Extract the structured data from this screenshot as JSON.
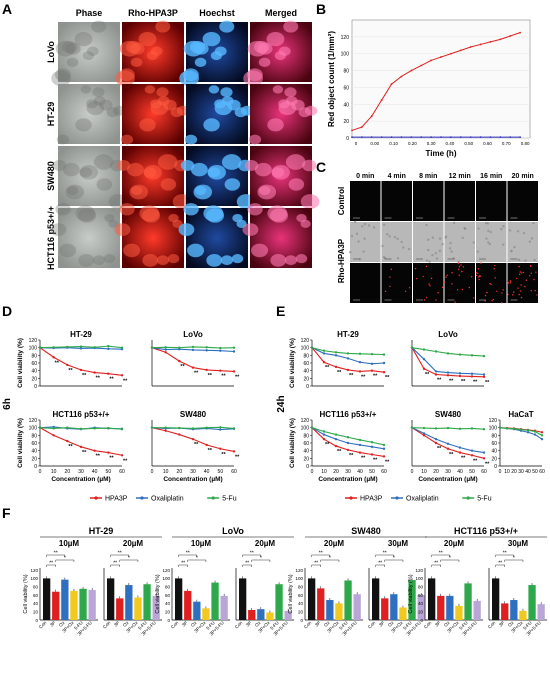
{
  "panelA": {
    "label": "A",
    "columns": [
      "Phase",
      "Rho-HPA3P",
      "Hoechst",
      "Merged"
    ],
    "rows": [
      "LoVo",
      "HT-29",
      "SW480",
      "HCT116 p53+/+"
    ],
    "colors": {
      "phase": "#9aa09c",
      "rho": "#c81010",
      "hoechst": "#1a6fd0",
      "merged": "#b02050"
    }
  },
  "panelB": {
    "label": "B",
    "ylabel": "Red object count (1/mm²)",
    "xlabel": "Time (h)",
    "yticks": [
      "0",
      "20",
      "40",
      "60",
      "80",
      "100",
      "120"
    ],
    "xticks": [
      "0",
      "0.00",
      "0.10",
      "0.20",
      "0.30",
      "0.40",
      "0.50",
      "0.60",
      "0.70",
      "0.80"
    ]
  },
  "panelC": {
    "label": "C",
    "timepoints": [
      "0 min",
      "4 min",
      "8 min",
      "12 min",
      "16 min",
      "20 min"
    ],
    "rows": [
      "Control",
      "Rho-HPA3P"
    ]
  },
  "panelD": {
    "label": "D",
    "side_label": "6h",
    "ylabel": "Cell viability (%)",
    "xlabel": "Concentration (µM)",
    "subplots": [
      "HT-29",
      "LoVo",
      "HCT116 p53+/+",
      "SW480"
    ],
    "annotation": "**"
  },
  "panelE": {
    "label": "E",
    "side_label": "24h",
    "ylabel": "Cell viability (%)",
    "xlabel": "Concentration (µM)",
    "subplots": [
      "HT-29",
      "LoVo",
      "HCT116 p53+/+",
      "SW480",
      "HaCaT"
    ],
    "annotation": "**"
  },
  "legend": {
    "items": [
      {
        "name": "HPA3P",
        "color": "#e02020"
      },
      {
        "name": "Oxaliplatin",
        "color": "#2f6fc0"
      },
      {
        "name": "5-Fu",
        "color": "#2ea84a"
      }
    ]
  },
  "panelF": {
    "label": "F",
    "ylabel": "Cell viability (%)",
    "groups": [
      {
        "title": "HT-29",
        "concs": [
          "10µM",
          "20µM"
        ]
      },
      {
        "title": "LoVo",
        "concs": [
          "10µM",
          "20µM"
        ]
      },
      {
        "title": "SW480",
        "concs": [
          "20µM",
          "30µM"
        ]
      },
      {
        "title": "HCT116 p53+/+",
        "concs": [
          "20µM",
          "30µM"
        ]
      }
    ],
    "bar_categories": [
      "Con",
      "3P",
      "Ox",
      "3P+Ox",
      "5-FU",
      "3P+5-FU"
    ],
    "bar_colors": [
      "#111111",
      "#e02020",
      "#2f6fc0",
      "#f2c91e",
      "#2ea84a",
      "#b9a6d6"
    ],
    "annotations": [
      "*",
      "**"
    ]
  },
  "chart_data": [
    {
      "type": "line",
      "id": "B",
      "xlabel": "Time (h)",
      "ylabel": "Red object count (1/mm²)",
      "ylim": [
        0,
        140
      ],
      "x": [
        0,
        0.05,
        0.1,
        0.15,
        0.2,
        0.25,
        0.3,
        0.35,
        0.4,
        0.45,
        0.5,
        0.55,
        0.6,
        0.65,
        0.7,
        0.75,
        0.8,
        0.85
      ],
      "series": [
        {
          "color": "#e02020",
          "values": [
            9,
            13,
            26,
            45,
            64,
            73,
            80,
            86,
            92,
            96,
            100,
            104,
            108,
            111,
            114,
            117,
            121,
            125
          ]
        },
        {
          "color": "#3030c0",
          "values": [
            1,
            1,
            1,
            1,
            1,
            1,
            1,
            1,
            1,
            1,
            1,
            1,
            1,
            1,
            1,
            1,
            1,
            1
          ]
        }
      ]
    },
    {
      "type": "line",
      "id": "D",
      "x": [
        0,
        10,
        20,
        30,
        40,
        50,
        60
      ],
      "ylim": [
        0,
        100
      ],
      "subplots": [
        {
          "title": "HT-29",
          "series": [
            {
              "name": "HPA3P",
              "values": [
                100,
                75,
                55,
                42,
                35,
                32,
                28
              ]
            },
            {
              "name": "Oxaliplatin",
              "values": [
                100,
                99,
                100,
                98,
                99,
                97,
                96
              ]
            },
            {
              "name": "5-Fu",
              "values": [
                100,
                101,
                102,
                103,
                101,
                104,
                100
              ]
            }
          ]
        },
        {
          "title": "LoVo",
          "series": [
            {
              "name": "HPA3P",
              "values": [
                100,
                88,
                65,
                48,
                42,
                40,
                38
              ]
            },
            {
              "name": "Oxaliplatin",
              "values": [
                100,
                95,
                96,
                94,
                93,
                92,
                90
              ]
            },
            {
              "name": "5-Fu",
              "values": [
                100,
                101,
                100,
                102,
                101,
                99,
                100
              ]
            }
          ]
        },
        {
          "title": "HCT116 p53+/+",
          "series": [
            {
              "name": "HPA3P",
              "values": [
                100,
                80,
                65,
                50,
                40,
                35,
                28
              ]
            },
            {
              "name": "Oxaliplatin",
              "values": [
                100,
                102,
                98,
                96,
                100,
                98,
                97
              ]
            },
            {
              "name": "5-Fu",
              "values": [
                100,
                98,
                100,
                97,
                98,
                99,
                96
              ]
            }
          ]
        },
        {
          "title": "SW480",
          "series": [
            {
              "name": "HPA3P",
              "values": [
                100,
                92,
                82,
                70,
                55,
                45,
                38
              ]
            },
            {
              "name": "Oxaliplatin",
              "values": [
                100,
                98,
                99,
                96,
                98,
                95,
                97
              ]
            },
            {
              "name": "5-Fu",
              "values": [
                100,
                100,
                99,
                98,
                100,
                101,
                98
              ]
            }
          ]
        }
      ]
    },
    {
      "type": "line",
      "id": "E",
      "x": [
        0,
        10,
        20,
        30,
        40,
        50,
        60
      ],
      "ylim": [
        0,
        100
      ],
      "subplots": [
        {
          "title": "HT-29",
          "series": [
            {
              "name": "HPA3P",
              "values": [
                100,
                62,
                50,
                42,
                38,
                40,
                36
              ]
            },
            {
              "name": "Oxaliplatin",
              "values": [
                100,
                85,
                80,
                72,
                62,
                58,
                60
              ]
            },
            {
              "name": "5-Fu",
              "values": [
                100,
                92,
                88,
                85,
                84,
                83,
                82
              ]
            }
          ]
        },
        {
          "title": "LoVo",
          "series": [
            {
              "name": "HPA3P",
              "values": [
                100,
                45,
                30,
                28,
                26,
                25,
                24
              ]
            },
            {
              "name": "Oxaliplatin",
              "values": [
                100,
                70,
                38,
                35,
                33,
                32,
                30
              ]
            },
            {
              "name": "5-Fu",
              "values": [
                100,
                95,
                90,
                85,
                82,
                80,
                78
              ]
            }
          ]
        },
        {
          "title": "HCT116 p53+/+",
          "series": [
            {
              "name": "HPA3P",
              "values": [
                100,
                70,
                52,
                42,
                35,
                30,
                25
              ]
            },
            {
              "name": "Oxaliplatin",
              "values": [
                100,
                82,
                70,
                60,
                55,
                50,
                45
              ]
            },
            {
              "name": "5-Fu",
              "values": [
                100,
                90,
                82,
                75,
                68,
                62,
                55
              ]
            }
          ]
        },
        {
          "title": "SW480",
          "series": [
            {
              "name": "HPA3P",
              "values": [
                100,
                80,
                60,
                45,
                35,
                28,
                20
              ]
            },
            {
              "name": "Oxaliplatin",
              "values": [
                100,
                85,
                70,
                58,
                48,
                40,
                35
              ]
            },
            {
              "name": "5-Fu",
              "values": [
                100,
                99,
                98,
                99,
                97,
                98,
                96
              ]
            }
          ]
        },
        {
          "title": "HaCaT",
          "series": [
            {
              "name": "HPA3P",
              "values": [
                100,
                99,
                98,
                96,
                94,
                92,
                88
              ]
            },
            {
              "name": "Oxaliplatin",
              "values": [
                100,
                98,
                96,
                92,
                88,
                82,
                70
              ]
            },
            {
              "name": "5-Fu",
              "values": [
                100,
                98,
                97,
                95,
                93,
                90,
                80
              ]
            }
          ]
        }
      ]
    },
    {
      "type": "bar",
      "id": "F",
      "ylim": [
        0,
        125
      ],
      "categories": [
        "Con",
        "3P",
        "Ox",
        "3P+Ox",
        "5-FU",
        "3P+5-FU"
      ],
      "subplots": [
        {
          "group": "HT-29",
          "conc": "10µM",
          "values": [
            100,
            68,
            97,
            70,
            75,
            72
          ]
        },
        {
          "group": "HT-29",
          "conc": "20µM",
          "values": [
            100,
            52,
            84,
            54,
            86,
            58
          ]
        },
        {
          "group": "LoVo",
          "conc": "10µM",
          "values": [
            100,
            70,
            44,
            28,
            90,
            58
          ]
        },
        {
          "group": "LoVo",
          "conc": "20µM",
          "values": [
            100,
            24,
            26,
            18,
            86,
            22
          ]
        },
        {
          "group": "SW480",
          "conc": "20µM",
          "values": [
            100,
            76,
            48,
            40,
            95,
            62
          ]
        },
        {
          "group": "SW480",
          "conc": "30µM",
          "values": [
            100,
            52,
            62,
            30,
            96,
            60
          ]
        },
        {
          "group": "HCT116 p53+/+",
          "conc": "20µM",
          "values": [
            100,
            58,
            58,
            34,
            88,
            46
          ]
        },
        {
          "group": "HCT116 p53+/+",
          "conc": "30µM",
          "values": [
            100,
            40,
            48,
            22,
            84,
            38
          ]
        }
      ]
    }
  ]
}
